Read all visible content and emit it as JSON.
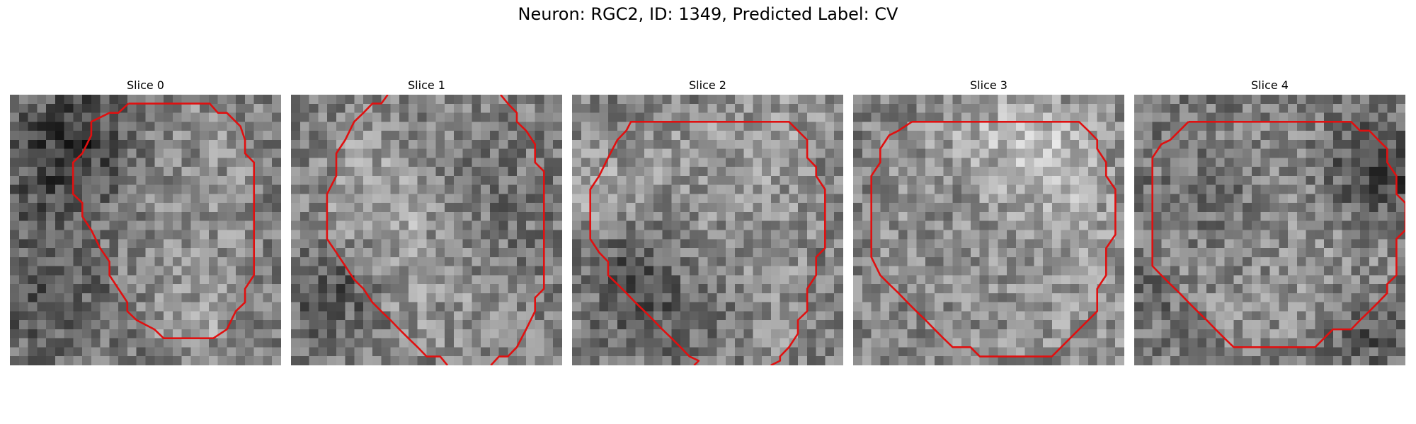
{
  "figure": {
    "title": "Neuron: RGC2, ID: 1349, Predicted Label: CV"
  },
  "contour_color": "#e01010",
  "colormap": "gray",
  "slices": [
    {
      "title": "Slice 0",
      "seed": 11,
      "contours": [
        [
          [
            0.437,
            0.033
          ],
          [
            0.737,
            0.033
          ],
          [
            0.767,
            0.067
          ],
          [
            0.8,
            0.067
          ],
          [
            0.85,
            0.117
          ],
          [
            0.867,
            0.167
          ],
          [
            0.867,
            0.217
          ],
          [
            0.9,
            0.25
          ],
          [
            0.9,
            0.667
          ],
          [
            0.867,
            0.717
          ],
          [
            0.867,
            0.767
          ],
          [
            0.833,
            0.8
          ],
          [
            0.8,
            0.867
          ],
          [
            0.75,
            0.9
          ],
          [
            0.567,
            0.9
          ],
          [
            0.533,
            0.867
          ],
          [
            0.467,
            0.833
          ],
          [
            0.433,
            0.8
          ],
          [
            0.433,
            0.767
          ],
          [
            0.4,
            0.717
          ],
          [
            0.367,
            0.667
          ],
          [
            0.367,
            0.617
          ],
          [
            0.333,
            0.567
          ],
          [
            0.3,
            0.5
          ],
          [
            0.267,
            0.45
          ],
          [
            0.267,
            0.4
          ],
          [
            0.233,
            0.367
          ],
          [
            0.233,
            0.25
          ],
          [
            0.267,
            0.217
          ],
          [
            0.3,
            0.15
          ],
          [
            0.3,
            0.1
          ],
          [
            0.367,
            0.067
          ],
          [
            0.4,
            0.067
          ],
          [
            0.437,
            0.033
          ]
        ]
      ]
    },
    {
      "title": "Slice 1",
      "seed": 23,
      "contours": [
        [
          [
            0.357,
            0.0
          ],
          [
            0.333,
            0.033
          ],
          [
            0.3,
            0.033
          ],
          [
            0.267,
            0.067
          ],
          [
            0.233,
            0.1
          ],
          [
            0.2,
            0.167
          ],
          [
            0.167,
            0.217
          ],
          [
            0.167,
            0.3
          ],
          [
            0.133,
            0.367
          ],
          [
            0.133,
            0.533
          ],
          [
            0.167,
            0.583
          ],
          [
            0.2,
            0.633
          ],
          [
            0.233,
            0.683
          ],
          [
            0.267,
            0.717
          ],
          [
            0.3,
            0.767
          ],
          [
            0.333,
            0.8
          ],
          [
            0.367,
            0.833
          ],
          [
            0.4,
            0.867
          ],
          [
            0.433,
            0.9
          ],
          [
            0.467,
            0.933
          ],
          [
            0.5,
            0.967
          ],
          [
            0.55,
            0.967
          ],
          [
            0.577,
            1.0
          ]
        ],
        [
          [
            0.773,
            0.0
          ],
          [
            0.8,
            0.033
          ],
          [
            0.833,
            0.067
          ],
          [
            0.833,
            0.1
          ],
          [
            0.867,
            0.133
          ],
          [
            0.9,
            0.183
          ],
          [
            0.9,
            0.25
          ],
          [
            0.933,
            0.283
          ],
          [
            0.933,
            0.717
          ],
          [
            0.9,
            0.75
          ],
          [
            0.9,
            0.8
          ],
          [
            0.867,
            0.867
          ],
          [
            0.833,
            0.933
          ],
          [
            0.8,
            0.967
          ],
          [
            0.767,
            0.967
          ],
          [
            0.737,
            1.0
          ]
        ]
      ]
    },
    {
      "title": "Slice 2",
      "seed": 37,
      "contours": [
        [
          [
            0.2,
            0.133
          ],
          [
            0.217,
            0.1
          ],
          [
            0.8,
            0.1
          ],
          [
            0.833,
            0.133
          ],
          [
            0.867,
            0.167
          ],
          [
            0.867,
            0.233
          ],
          [
            0.9,
            0.267
          ],
          [
            0.9,
            0.3
          ],
          [
            0.933,
            0.35
          ],
          [
            0.933,
            0.567
          ],
          [
            0.9,
            0.6
          ],
          [
            0.9,
            0.667
          ],
          [
            0.867,
            0.717
          ],
          [
            0.867,
            0.8
          ],
          [
            0.833,
            0.833
          ],
          [
            0.833,
            0.883
          ],
          [
            0.8,
            0.933
          ],
          [
            0.767,
            0.967
          ],
          [
            0.767,
            0.983
          ],
          [
            0.733,
            1.0
          ]
        ],
        [
          [
            0.2,
            0.133
          ],
          [
            0.167,
            0.167
          ],
          [
            0.133,
            0.233
          ],
          [
            0.1,
            0.3
          ],
          [
            0.067,
            0.35
          ],
          [
            0.067,
            0.533
          ],
          [
            0.1,
            0.583
          ],
          [
            0.133,
            0.617
          ],
          [
            0.133,
            0.667
          ],
          [
            0.167,
            0.7
          ],
          [
            0.2,
            0.733
          ],
          [
            0.233,
            0.767
          ],
          [
            0.267,
            0.8
          ],
          [
            0.3,
            0.833
          ],
          [
            0.333,
            0.867
          ],
          [
            0.367,
            0.9
          ],
          [
            0.4,
            0.933
          ],
          [
            0.433,
            0.967
          ],
          [
            0.433,
            0.967
          ],
          [
            0.467,
            0.983
          ],
          [
            0.45,
            1.0
          ]
        ]
      ]
    },
    {
      "title": "Slice 3",
      "seed": 51,
      "contours": [
        [
          [
            0.217,
            0.1
          ],
          [
            0.833,
            0.1
          ],
          [
            0.867,
            0.133
          ],
          [
            0.9,
            0.167
          ],
          [
            0.9,
            0.2
          ],
          [
            0.933,
            0.25
          ],
          [
            0.933,
            0.3
          ],
          [
            0.967,
            0.35
          ],
          [
            0.967,
            0.517
          ],
          [
            0.933,
            0.567
          ],
          [
            0.933,
            0.667
          ],
          [
            0.9,
            0.717
          ],
          [
            0.9,
            0.8
          ],
          [
            0.867,
            0.833
          ],
          [
            0.833,
            0.867
          ],
          [
            0.8,
            0.9
          ],
          [
            0.767,
            0.933
          ],
          [
            0.733,
            0.967
          ],
          [
            0.467,
            0.967
          ],
          [
            0.433,
            0.933
          ],
          [
            0.367,
            0.933
          ],
          [
            0.333,
            0.9
          ],
          [
            0.3,
            0.867
          ],
          [
            0.267,
            0.833
          ],
          [
            0.233,
            0.8
          ],
          [
            0.2,
            0.767
          ],
          [
            0.167,
            0.733
          ],
          [
            0.133,
            0.7
          ],
          [
            0.1,
            0.667
          ],
          [
            0.067,
            0.6
          ],
          [
            0.067,
            0.3
          ],
          [
            0.1,
            0.25
          ],
          [
            0.1,
            0.2
          ],
          [
            0.133,
            0.15
          ],
          [
            0.167,
            0.133
          ],
          [
            0.217,
            0.1
          ]
        ]
      ]
    },
    {
      "title": "Slice 4",
      "seed": 67,
      "contours": [
        [
          [
            0.2,
            0.1
          ],
          [
            0.8,
            0.1
          ],
          [
            0.833,
            0.133
          ],
          [
            0.867,
            0.133
          ],
          [
            0.9,
            0.167
          ],
          [
            0.933,
            0.2
          ],
          [
            0.933,
            0.25
          ],
          [
            0.967,
            0.3
          ],
          [
            0.967,
            0.367
          ],
          [
            1.0,
            0.4
          ],
          [
            1.0,
            0.5
          ],
          [
            0.967,
            0.533
          ],
          [
            0.967,
            0.667
          ],
          [
            0.933,
            0.7
          ],
          [
            0.933,
            0.733
          ],
          [
            0.9,
            0.767
          ],
          [
            0.867,
            0.8
          ],
          [
            0.833,
            0.833
          ],
          [
            0.8,
            0.867
          ],
          [
            0.733,
            0.867
          ],
          [
            0.7,
            0.9
          ],
          [
            0.667,
            0.933
          ],
          [
            0.367,
            0.933
          ],
          [
            0.333,
            0.9
          ],
          [
            0.3,
            0.867
          ],
          [
            0.267,
            0.833
          ],
          [
            0.233,
            0.8
          ],
          [
            0.2,
            0.767
          ],
          [
            0.167,
            0.733
          ],
          [
            0.133,
            0.7
          ],
          [
            0.1,
            0.667
          ],
          [
            0.067,
            0.633
          ],
          [
            0.067,
            0.233
          ],
          [
            0.1,
            0.183
          ],
          [
            0.133,
            0.167
          ],
          [
            0.167,
            0.133
          ],
          [
            0.2,
            0.1
          ]
        ]
      ]
    }
  ]
}
